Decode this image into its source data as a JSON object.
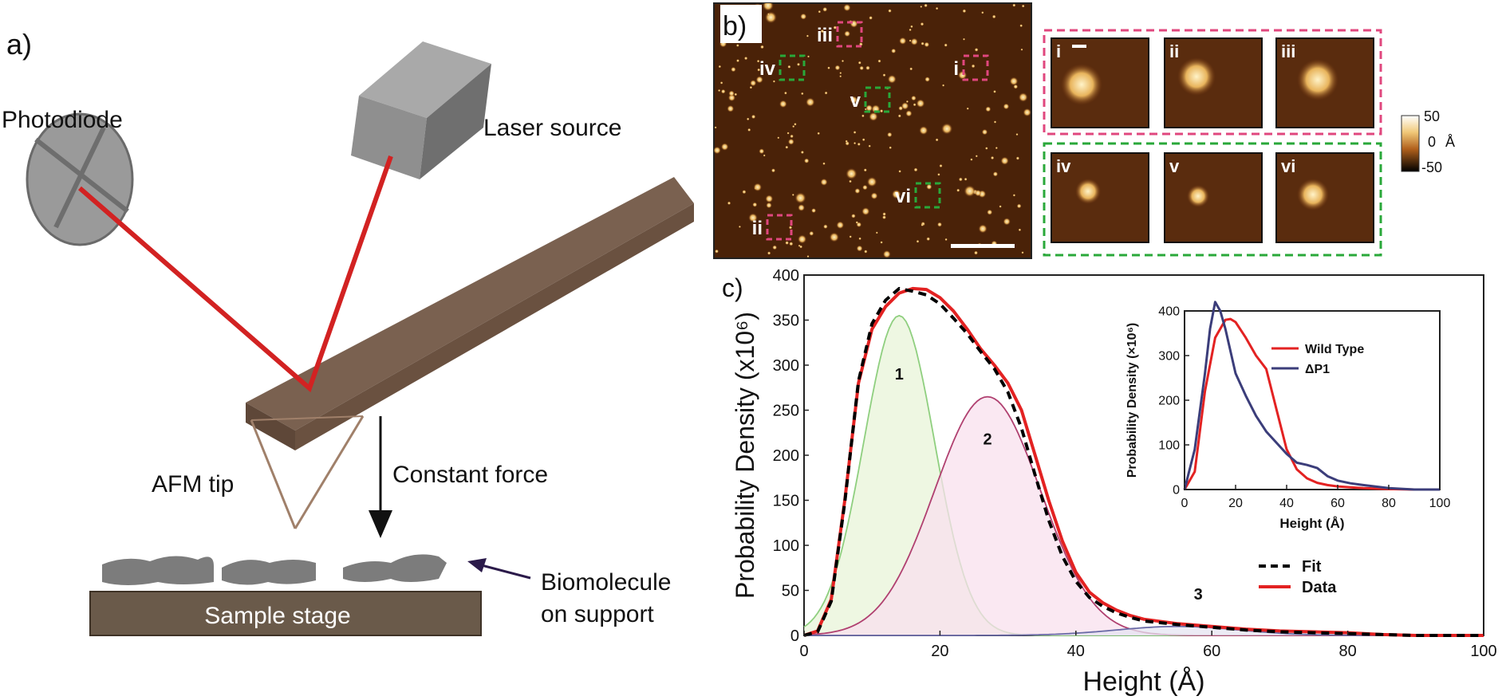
{
  "panel_a": {
    "label": "a)",
    "photodiode": "Photodiode",
    "laser": "Laser source",
    "afm_tip": "AFM tip",
    "force": "Constant force",
    "biomolecule_l1": "Biomolecule",
    "biomolecule_l2": "on support",
    "stage": "Sample stage"
  },
  "panel_b": {
    "label": "b)",
    "regions": [
      "iii",
      "iv",
      "i",
      "v",
      "vi",
      "ii"
    ],
    "zoom_labels": [
      "i",
      "ii",
      "iii",
      "iv",
      "v",
      "vi"
    ],
    "colorbar": {
      "max": "50",
      "mid": "0",
      "unit": "Å",
      "min": "-50"
    },
    "colors": {
      "pink": "#e0477e",
      "green": "#2aa83a",
      "afm_dark": "#3a1a08",
      "afm_bright": "#f5dca0"
    }
  },
  "panel_c": {
    "label": "c)",
    "chart_data": [
      {
        "type": "area",
        "xlabel": "Height (Å)",
        "ylabel": "Probability Density (x10⁶)",
        "xlim": [
          0,
          100
        ],
        "ylim": [
          0,
          400
        ],
        "xticks": [
          0,
          20,
          40,
          60,
          80,
          100
        ],
        "yticks": [
          0,
          50,
          100,
          150,
          200,
          250,
          300,
          350,
          400
        ],
        "legend": {
          "fit": "Fit",
          "data": "Data"
        },
        "series": [
          {
            "name": "Data",
            "color": "#e32222",
            "x": [
              0,
              2,
              4,
              6,
              8,
              10,
              12,
              14,
              16,
              18,
              20,
              22,
              24,
              26,
              28,
              30,
              32,
              34,
              36,
              38,
              40,
              42,
              44,
              46,
              48,
              50,
              55,
              60,
              65,
              70,
              75,
              80,
              85,
              90,
              95,
              100
            ],
            "y": [
              0,
              5,
              40,
              150,
              280,
              340,
              365,
              380,
              385,
              384,
              375,
              360,
              340,
              318,
              300,
              280,
              250,
              200,
              150,
              105,
              70,
              48,
              36,
              28,
              22,
              18,
              13,
              10,
              7,
              5,
              4,
              3,
              1,
              0,
              0,
              0
            ]
          },
          {
            "name": "Fit",
            "color": "#000000",
            "x": [
              0,
              2,
              4,
              6,
              8,
              10,
              12,
              14,
              16,
              18,
              20,
              22,
              24,
              26,
              28,
              30,
              32,
              34,
              36,
              38,
              40,
              42,
              44,
              46,
              48,
              50,
              55,
              60,
              65,
              70,
              75,
              80,
              85,
              90,
              95,
              100
            ],
            "y": [
              0,
              4,
              38,
              148,
              282,
              346,
              372,
              385,
              382,
              378,
              368,
              352,
              335,
              315,
              296,
              270,
              230,
              178,
              128,
              88,
              60,
              42,
              32,
              25,
              20,
              16,
              12,
              9,
              6,
              4,
              3,
              2,
              1,
              0,
              0,
              0
            ]
          }
        ],
        "components": [
          {
            "label": "1",
            "center": 14,
            "amplitude": 355,
            "sigma": 5.2,
            "fill": "#e8f4d8",
            "stroke": "#8fcf7f"
          },
          {
            "label": "2",
            "center": 27,
            "amplitude": 265,
            "sigma": 7.8,
            "fill": "#f8e0ee",
            "stroke": "#b04070"
          },
          {
            "label": "3",
            "center": 55,
            "amplitude": 10,
            "sigma": 9.0,
            "fill": "#e6e4f2",
            "stroke": "#6a6aa6"
          }
        ]
      },
      {
        "type": "line",
        "xlabel": "Height (Å)",
        "ylabel": "Probability Density (×10⁶)",
        "xlim": [
          0,
          100
        ],
        "ylim": [
          0,
          400
        ],
        "xticks": [
          0,
          20,
          40,
          60,
          80,
          100
        ],
        "yticks": [
          0,
          100,
          200,
          300,
          400
        ],
        "series": [
          {
            "name": "Wild Type",
            "color": "#e32222",
            "x": [
              0,
              4,
              8,
              12,
              16,
              18,
              20,
              24,
              28,
              32,
              36,
              40,
              44,
              48,
              52,
              56,
              60,
              65,
              70,
              80,
              90,
              100
            ],
            "y": [
              0,
              40,
              220,
              340,
              380,
              382,
              375,
              340,
              300,
              270,
              180,
              90,
              45,
              25,
              15,
              10,
              7,
              5,
              3,
              1,
              0,
              0
            ]
          },
          {
            "name": "ΔP1",
            "color": "#3b3d7a",
            "x": [
              0,
              4,
              8,
              10,
              12,
              14,
              16,
              20,
              24,
              28,
              32,
              36,
              40,
              44,
              48,
              52,
              56,
              60,
              65,
              70,
              80,
              90,
              100
            ],
            "y": [
              0,
              90,
              260,
              360,
              420,
              400,
              360,
              260,
              210,
              165,
              130,
              105,
              80,
              60,
              55,
              48,
              30,
              20,
              14,
              10,
              3,
              0,
              0
            ]
          }
        ]
      }
    ]
  }
}
